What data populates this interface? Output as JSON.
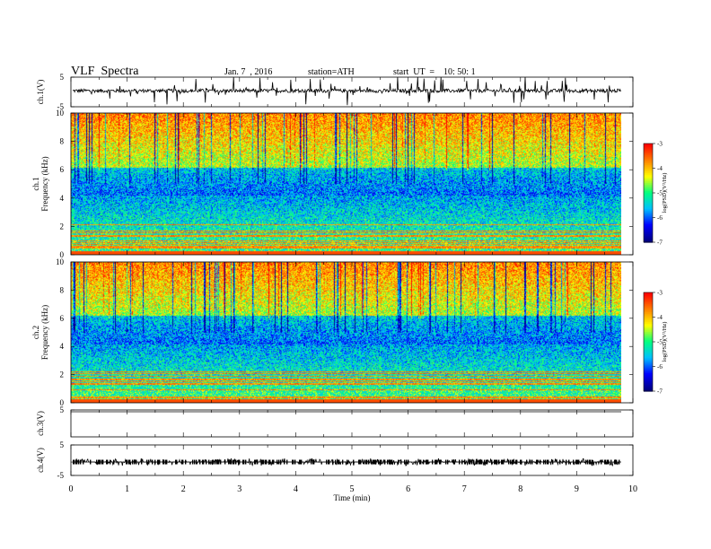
{
  "header": {
    "title": "VLF  Spectra",
    "date": "Jan. 7  , 2016",
    "station": "station=ATH",
    "start": "start  UT  =    10: 50: 1"
  },
  "chart_data": [
    {
      "type": "line",
      "panel": "waveform",
      "ylabel": "ch.1(V)",
      "ylim": [
        -5,
        5
      ],
      "yticks": [
        "5",
        "-5"
      ],
      "baseline": 0.4,
      "noise": 0.6,
      "spike_density": 0.08,
      "spike_amp": 4.5,
      "color": "#000000"
    },
    {
      "type": "heatmap",
      "panel": "spectrogram",
      "ylabel": "ch.1\nFrequency  (kHz)",
      "ylim": [
        0,
        10
      ],
      "yticks": [
        "0",
        "2",
        "4",
        "6",
        "8",
        "10"
      ],
      "colorbar_label": "log(PSD)(V²/Hz)",
      "colorbar_ticks": [
        "-3",
        "-4",
        "-5",
        "-6",
        "-7"
      ],
      "colorbar_range": [
        -7,
        -3
      ],
      "colorscale": [
        "#000080",
        "#0000ff",
        "#00bfff",
        "#00ff80",
        "#ffff00",
        "#ff8000",
        "#ff0000"
      ]
    },
    {
      "type": "heatmap",
      "panel": "spectrogram",
      "ylabel": "ch.2\nFrequency  (kHz)",
      "ylim": [
        0,
        10
      ],
      "yticks": [
        "0",
        "2",
        "4",
        "6",
        "8",
        "10"
      ],
      "colorbar_label": "log(PSD)(V²/Hz)",
      "colorbar_ticks": [
        "-3",
        "-4",
        "-5",
        "-6",
        "-7"
      ],
      "colorbar_range": [
        -7,
        -3
      ],
      "colorscale": [
        "#000080",
        "#0000ff",
        "#00bfff",
        "#00ff80",
        "#ffff00",
        "#ff8000",
        "#ff0000"
      ]
    },
    {
      "type": "line",
      "panel": "waveform",
      "ylabel": "ch.3(V)",
      "ylim": [
        -5,
        5
      ],
      "yticks": [
        "5"
      ],
      "baseline": 5,
      "noise": 0,
      "spike_density": 0,
      "spike_amp": 0,
      "color": "#000000"
    },
    {
      "type": "line",
      "panel": "waveform",
      "ylabel": "ch.4(V)",
      "ylim": [
        -5,
        5
      ],
      "yticks": [
        "5",
        "-5"
      ],
      "baseline": -0.6,
      "noise": 0.0,
      "spike_density": 0.35,
      "spike_amp": 1.2,
      "color": "#000000"
    }
  ],
  "xaxis": {
    "label": "Time  (min)",
    "xlim": [
      0,
      10
    ],
    "ticks": [
      "0",
      "1",
      "2",
      "3",
      "4",
      "5",
      "6",
      "7",
      "8",
      "9",
      "10"
    ]
  }
}
